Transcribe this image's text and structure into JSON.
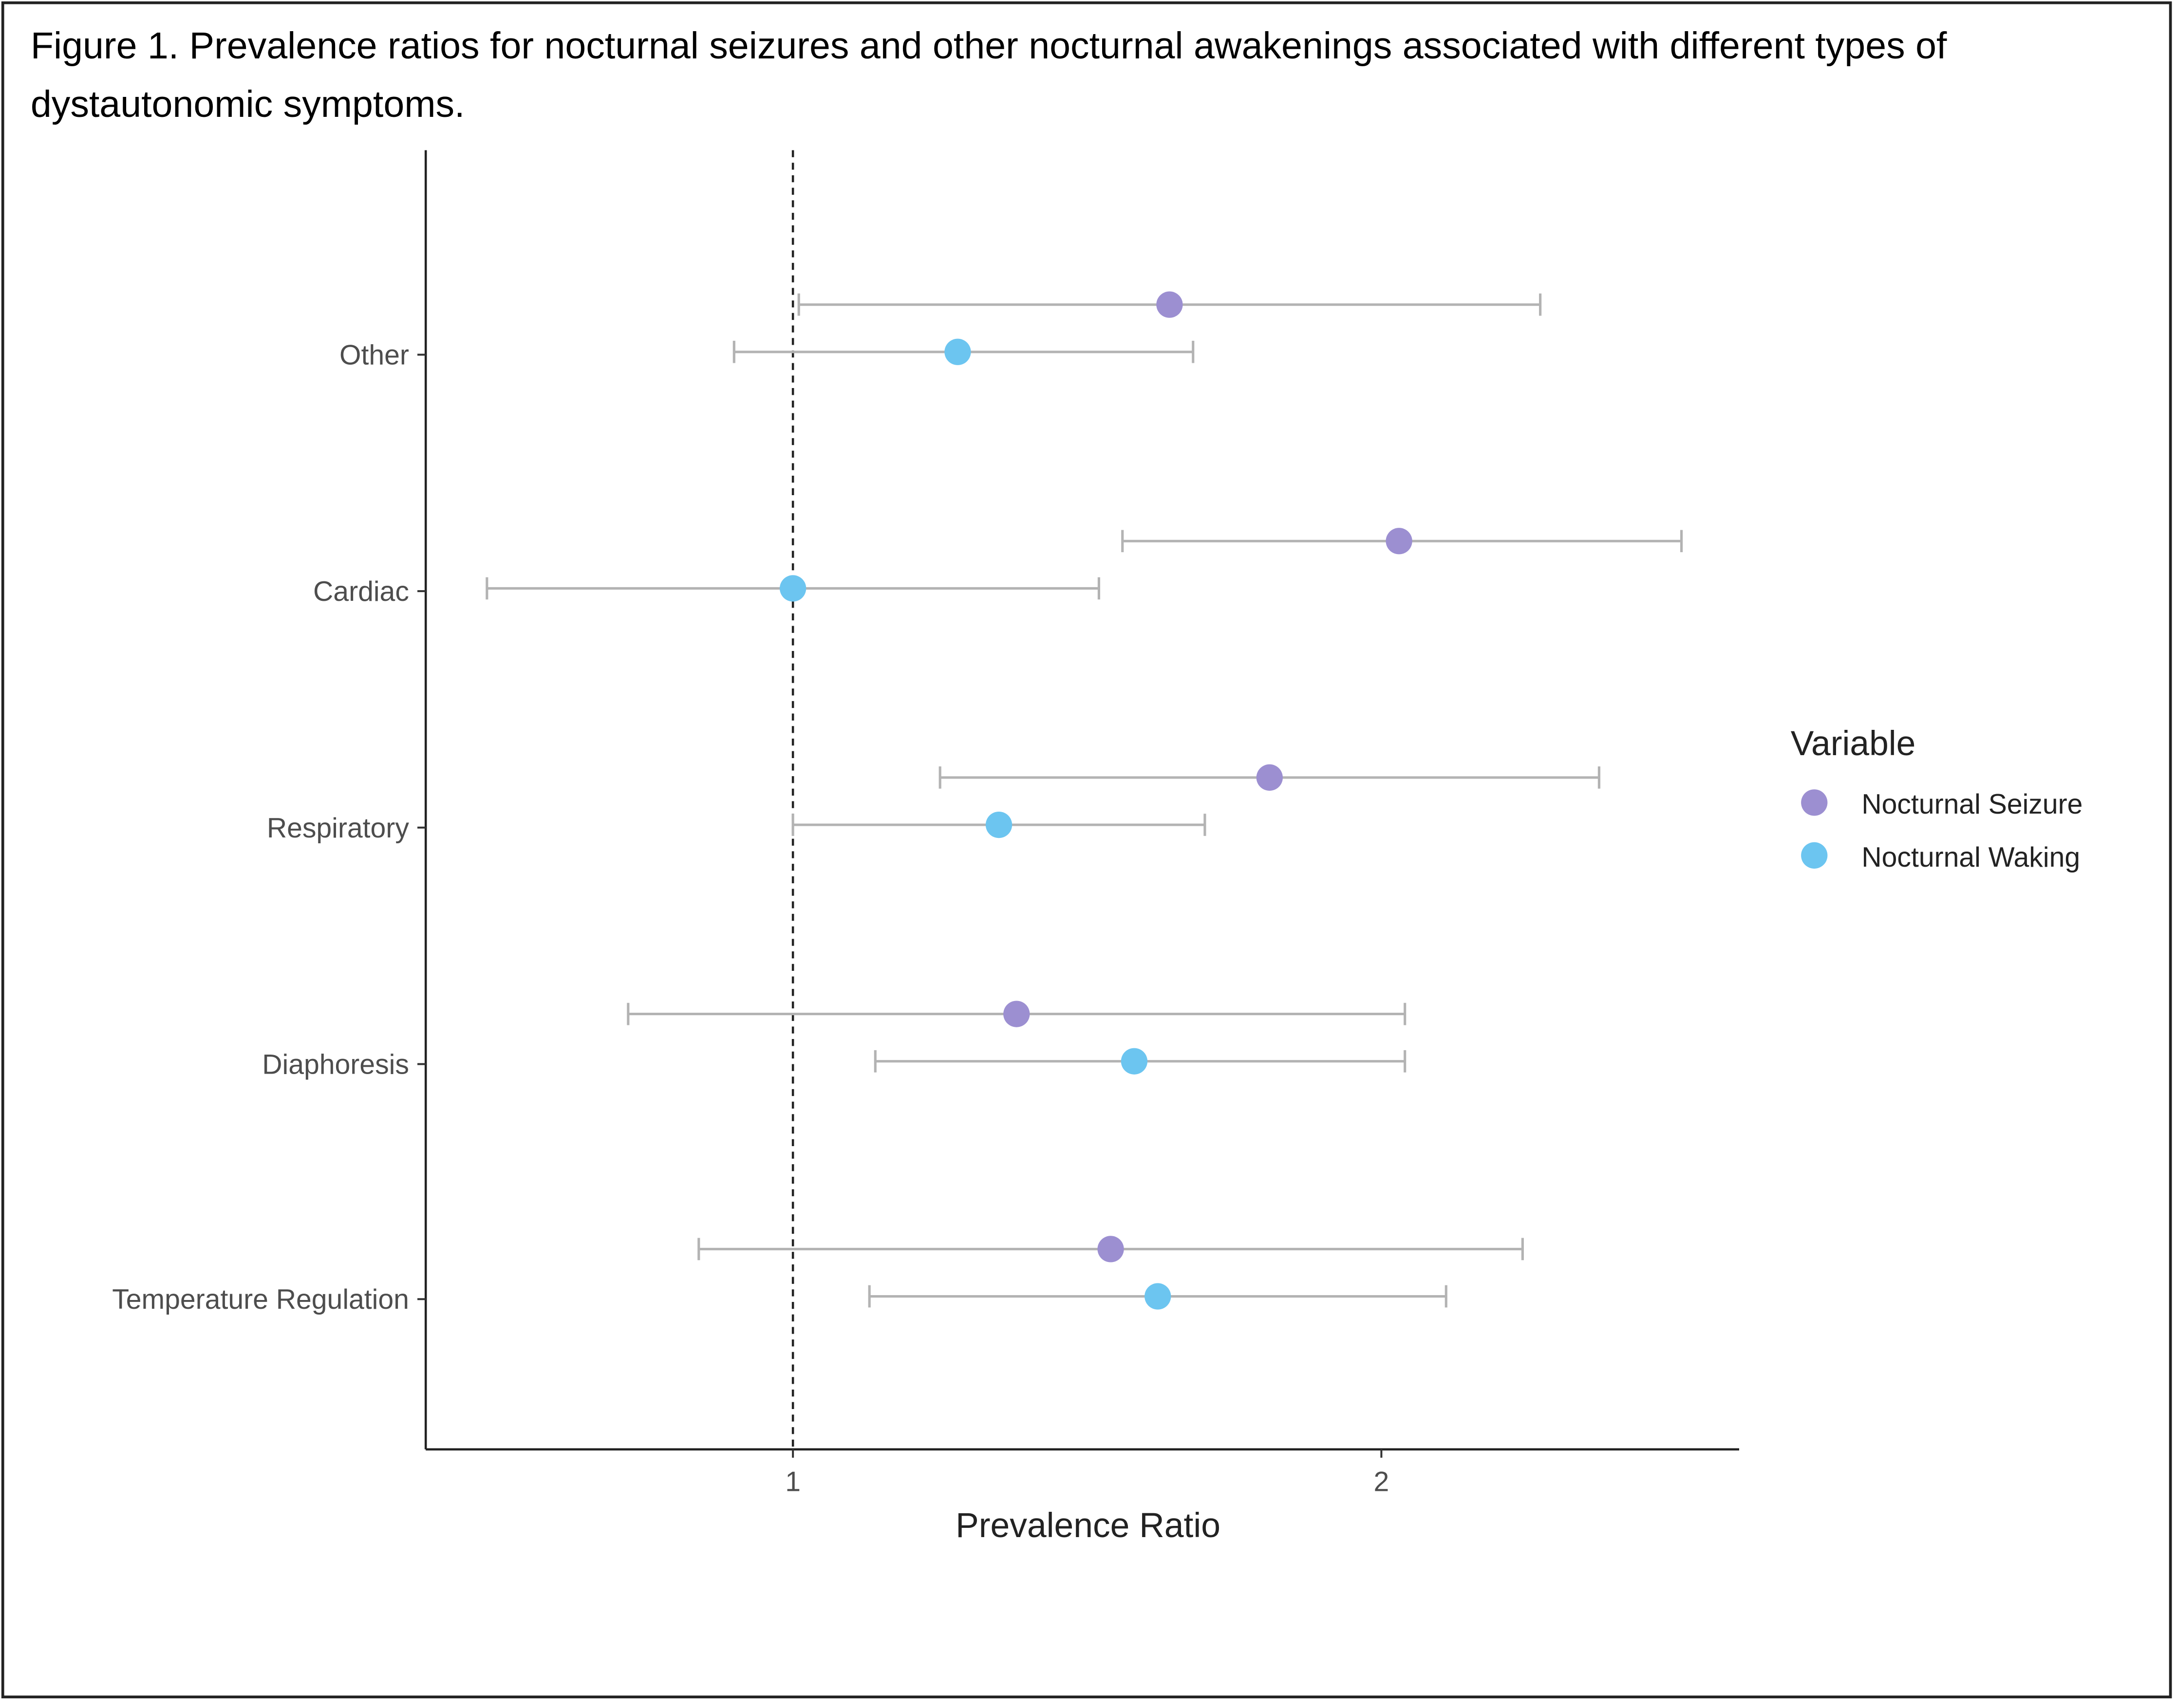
{
  "caption": "Figure 1. Prevalence ratios for nocturnal seizures and other nocturnal awakenings associated with different types of dystautonomic symptoms.",
  "chart_data": {
    "type": "scatter",
    "subtype": "forest-plot-with-error-bars",
    "xlabel": "Prevalence Ratio",
    "ylabel": "",
    "xlim": [
      0.376,
      2.608
    ],
    "xticks": [
      1,
      2
    ],
    "reference_line": {
      "x": 1,
      "style": "dashed"
    },
    "categories": [
      "Other",
      "Cardiac",
      "Respiratory",
      "Diaphoresis",
      "Temperature Regulation"
    ],
    "legend": {
      "title": "Variable",
      "placement": "right"
    },
    "series": [
      {
        "name": "Nocturnal Seizure",
        "color": "#9C8FD1",
        "values": [
          1.64,
          2.03,
          1.81,
          1.38,
          1.54
        ],
        "lower": [
          1.01,
          1.56,
          1.25,
          0.72,
          0.84
        ],
        "upper": [
          2.27,
          2.51,
          2.37,
          2.04,
          2.24
        ]
      },
      {
        "name": "Nocturnal Waking",
        "color": "#6CC5F0",
        "values": [
          1.28,
          1.0,
          1.35,
          1.58,
          1.62
        ],
        "lower": [
          0.9,
          0.48,
          1.0,
          1.14,
          1.13
        ],
        "upper": [
          1.68,
          1.52,
          1.7,
          2.04,
          2.11
        ]
      }
    ],
    "grid": false
  }
}
